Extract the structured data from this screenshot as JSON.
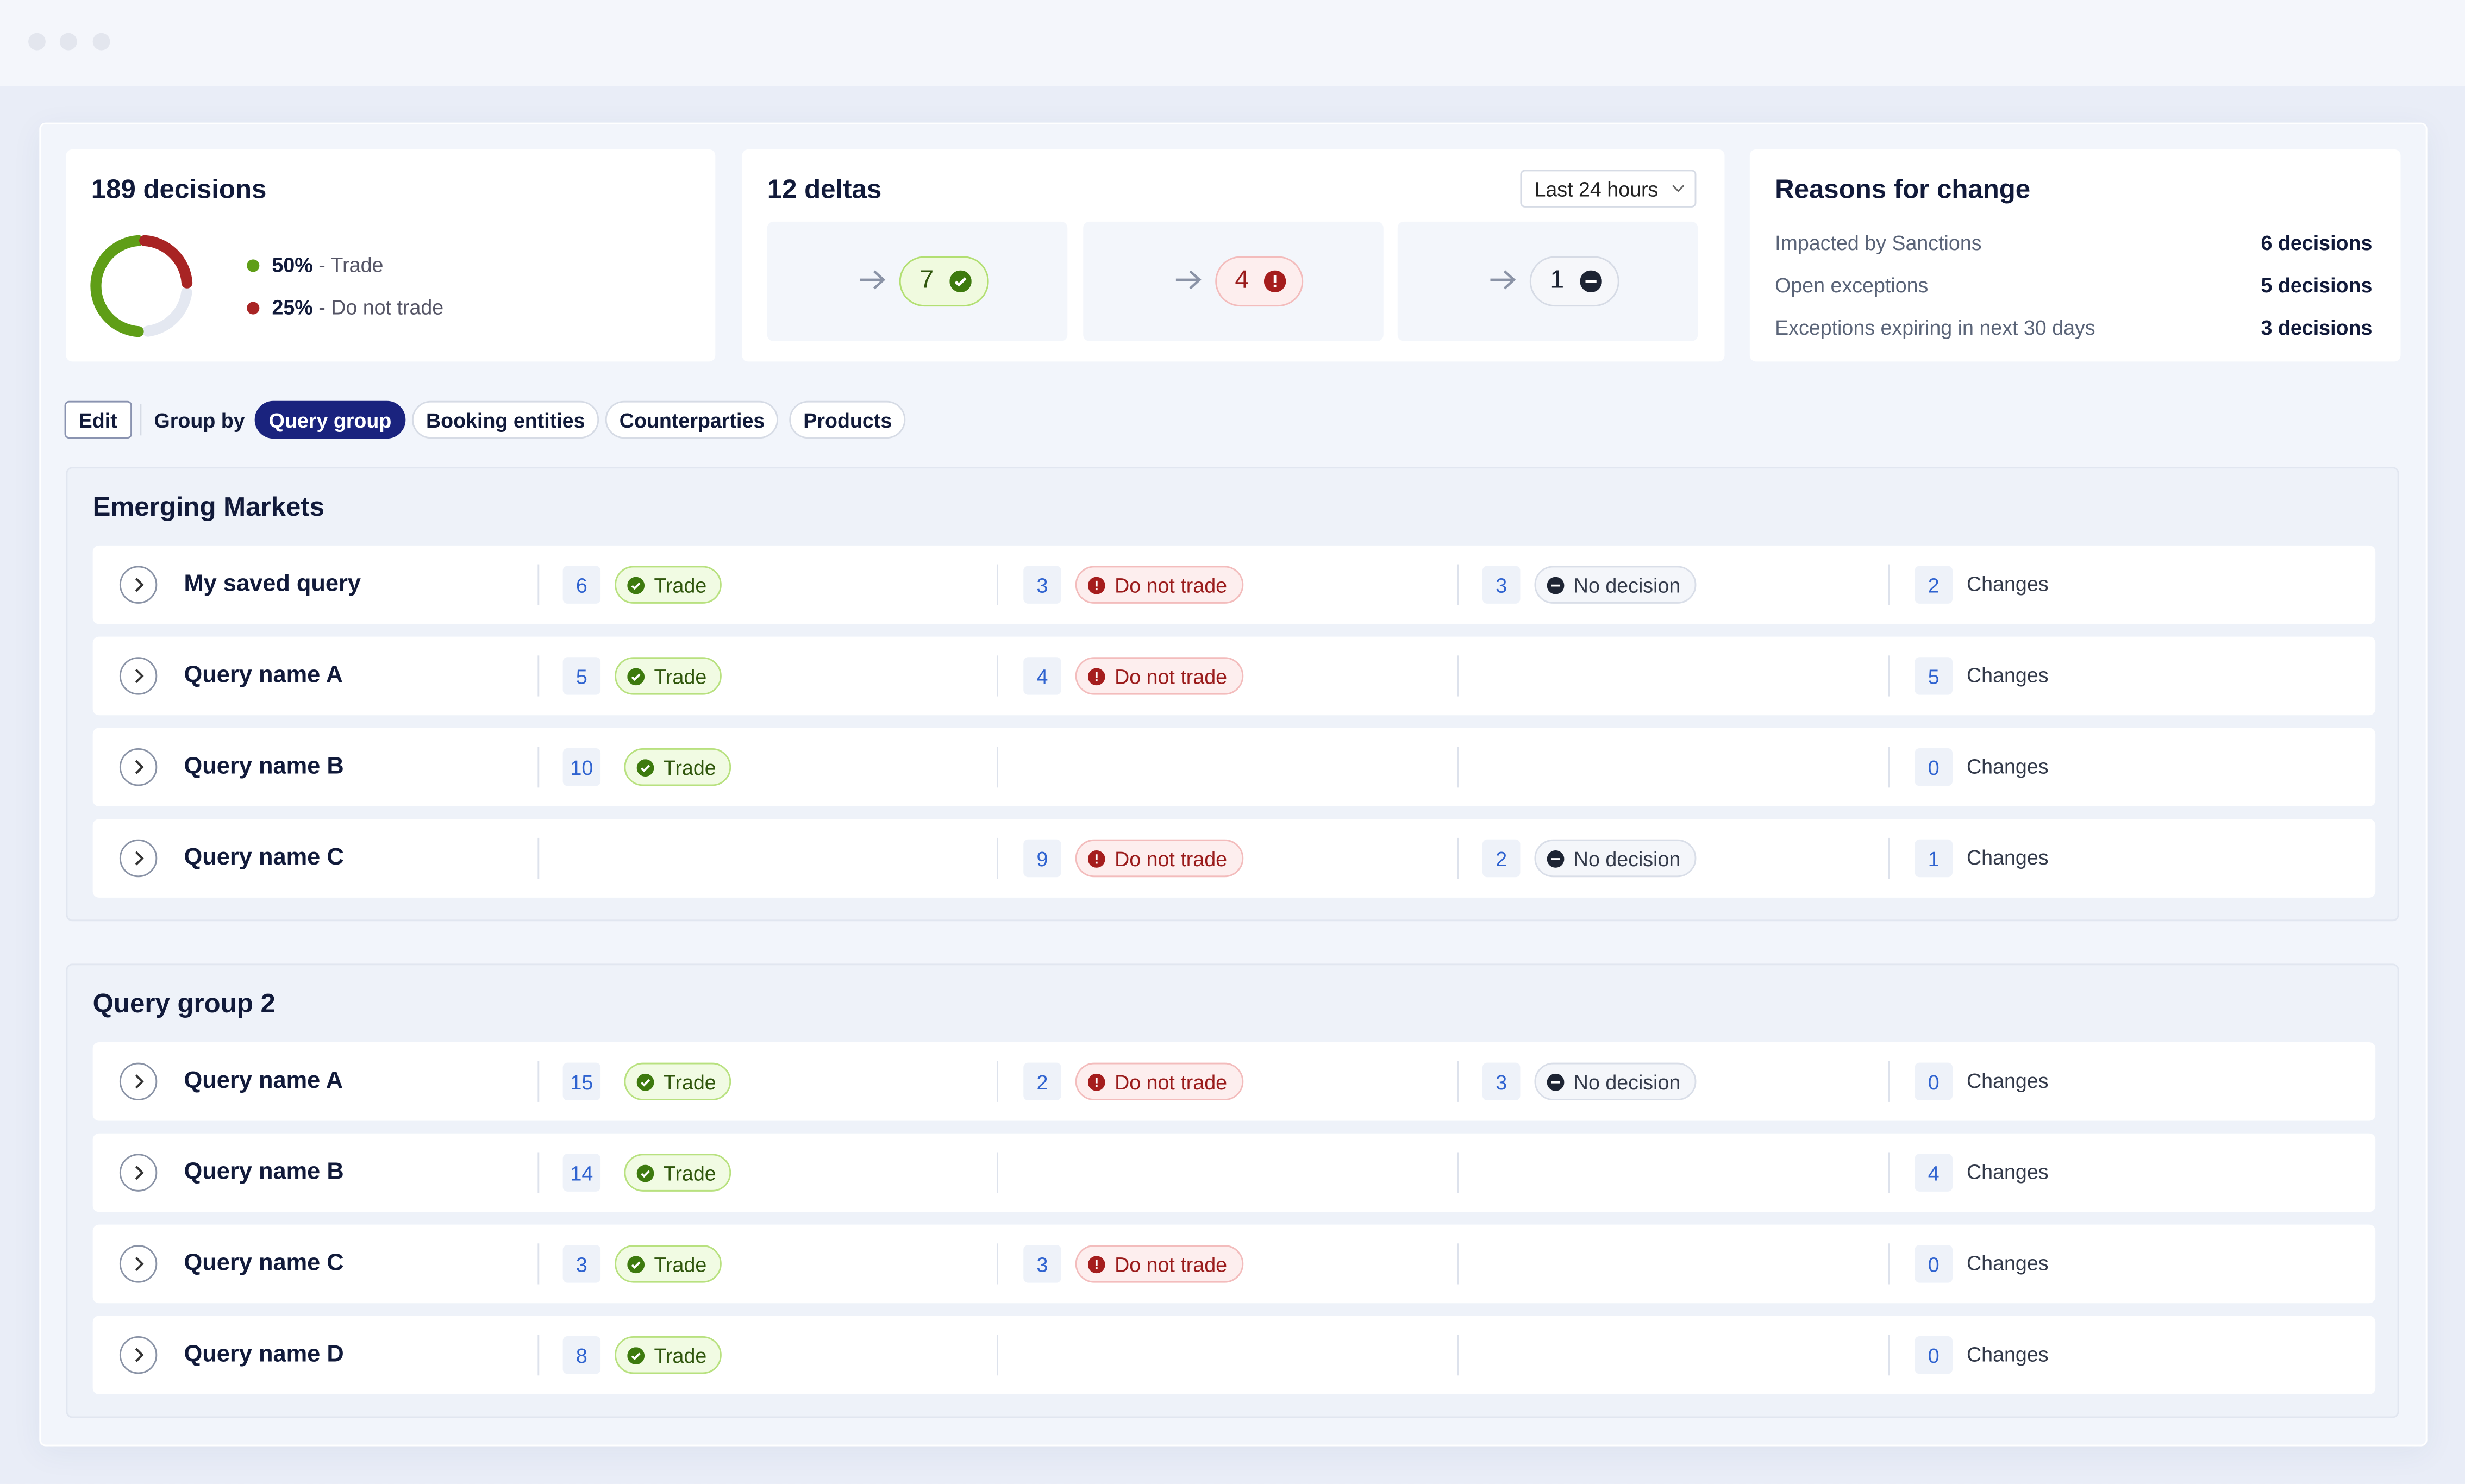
{
  "summary": {
    "title": "189 decisions",
    "legend": [
      {
        "value": 50,
        "label": "50%",
        "text": "- Trade"
      },
      {
        "value": 25,
        "label": "25%",
        "text": "- Do not trade"
      }
    ]
  },
  "deltas": {
    "title": "12 deltas",
    "range": "Last 24 hours",
    "items": [
      {
        "value": 7,
        "kind": "trade"
      },
      {
        "value": 4,
        "kind": "dnt"
      },
      {
        "value": 1,
        "kind": "nd"
      }
    ]
  },
  "reasons": {
    "title": "Reasons for change",
    "rows": [
      {
        "label": "Impacted by Sanctions",
        "value": "6 decisions"
      },
      {
        "label": "Open exceptions",
        "value": "5 decisions"
      },
      {
        "label": "Exceptions expiring in next 30 days",
        "value": "3 decisions"
      }
    ]
  },
  "toolbar": {
    "edit": "Edit",
    "group_by": "Group by",
    "options": [
      "Query group",
      "Booking entities",
      "Counterparties",
      "Products"
    ],
    "active": 0
  },
  "groups": [
    {
      "title": "Emerging Markets",
      "rows": [
        {
          "name": "My saved query",
          "trade": {
            "count": 6,
            "label": "Trade"
          },
          "dnt": {
            "count": 3,
            "label": "Do not trade"
          },
          "nd": {
            "count": 3,
            "label": "No decision"
          },
          "changes": {
            "count": 2,
            "label": "Changes"
          }
        },
        {
          "name": "Query name A",
          "trade": {
            "count": 5,
            "label": "Trade"
          },
          "dnt": {
            "count": 4,
            "label": "Do not trade"
          },
          "nd": null,
          "changes": {
            "count": 5,
            "label": "Changes"
          }
        },
        {
          "name": "Query name B",
          "trade": {
            "count": 10,
            "label": "Trade"
          },
          "dnt": null,
          "nd": null,
          "changes": {
            "count": 0,
            "label": "Changes"
          }
        },
        {
          "name": "Query name C",
          "trade": null,
          "dnt": {
            "count": 9,
            "label": "Do not trade"
          },
          "nd": {
            "count": 2,
            "label": "No decision"
          },
          "changes": {
            "count": 1,
            "label": "Changes"
          }
        }
      ]
    },
    {
      "title": "Query group 2",
      "rows": [
        {
          "name": "Query name A",
          "trade": {
            "count": 15,
            "label": "Trade"
          },
          "dnt": {
            "count": 2,
            "label": "Do not trade"
          },
          "nd": {
            "count": 3,
            "label": "No decision"
          },
          "changes": {
            "count": 0,
            "label": "Changes"
          }
        },
        {
          "name": "Query name B",
          "trade": {
            "count": 14,
            "label": "Trade"
          },
          "dnt": null,
          "nd": null,
          "changes": {
            "count": 4,
            "label": "Changes"
          }
        },
        {
          "name": "Query name C",
          "trade": {
            "count": 3,
            "label": "Trade"
          },
          "dnt": {
            "count": 3,
            "label": "Do not trade"
          },
          "nd": null,
          "changes": {
            "count": 0,
            "label": "Changes"
          }
        },
        {
          "name": "Query name D",
          "trade": {
            "count": 8,
            "label": "Trade"
          },
          "dnt": null,
          "nd": null,
          "changes": {
            "count": 0,
            "label": "Changes"
          }
        }
      ]
    }
  ]
}
